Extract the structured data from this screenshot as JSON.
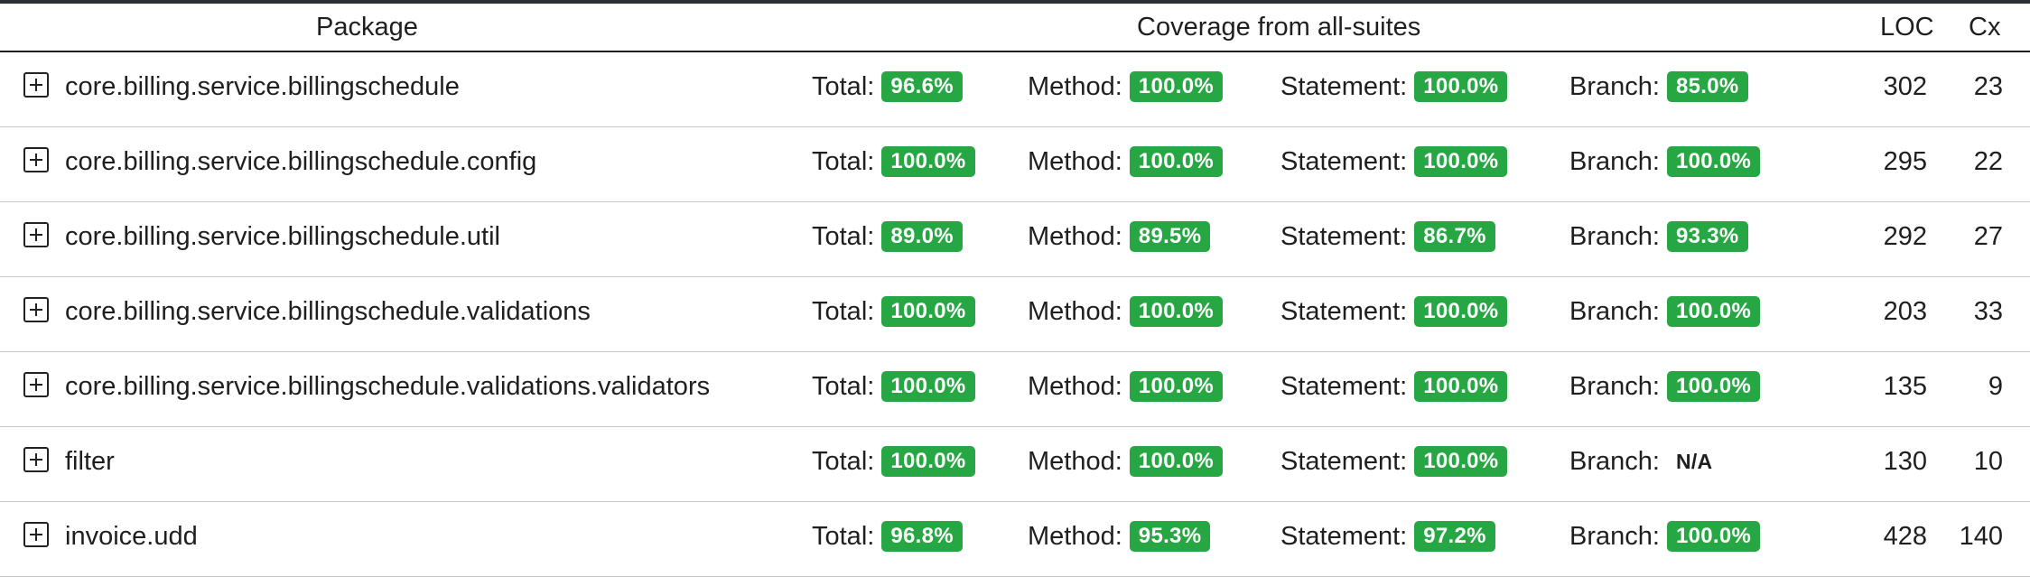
{
  "header": {
    "package": "Package",
    "coverage": "Coverage from all-suites",
    "loc": "LOC",
    "cx": "Cx"
  },
  "labels": {
    "total": "Total:",
    "method": "Method:",
    "statement": "Statement:",
    "branch": "Branch:"
  },
  "colors": {
    "badge_green": "#27a744",
    "header_rule": "#2b2f36"
  },
  "icons": {
    "expand": "plus-square-icon"
  },
  "rows": [
    {
      "package": "core.billing.service.billingschedule",
      "total": "96.6%",
      "method": "100.0%",
      "statement": "100.0%",
      "branch": "85.0%",
      "loc": "302",
      "cx": "23"
    },
    {
      "package": "core.billing.service.billingschedule.config",
      "total": "100.0%",
      "method": "100.0%",
      "statement": "100.0%",
      "branch": "100.0%",
      "loc": "295",
      "cx": "22"
    },
    {
      "package": "core.billing.service.billingschedule.util",
      "total": "89.0%",
      "method": "89.5%",
      "statement": "86.7%",
      "branch": "93.3%",
      "loc": "292",
      "cx": "27"
    },
    {
      "package": "core.billing.service.billingschedule.validations",
      "total": "100.0%",
      "method": "100.0%",
      "statement": "100.0%",
      "branch": "100.0%",
      "loc": "203",
      "cx": "33"
    },
    {
      "package": "core.billing.service.billingschedule.validations.validators",
      "total": "100.0%",
      "method": "100.0%",
      "statement": "100.0%",
      "branch": "100.0%",
      "loc": "135",
      "cx": "9"
    },
    {
      "package": "filter",
      "total": "100.0%",
      "method": "100.0%",
      "statement": "100.0%",
      "branch": "N/A",
      "loc": "130",
      "cx": "10"
    },
    {
      "package": "invoice.udd",
      "total": "96.8%",
      "method": "95.3%",
      "statement": "97.2%",
      "branch": "100.0%",
      "loc": "428",
      "cx": "140"
    }
  ]
}
